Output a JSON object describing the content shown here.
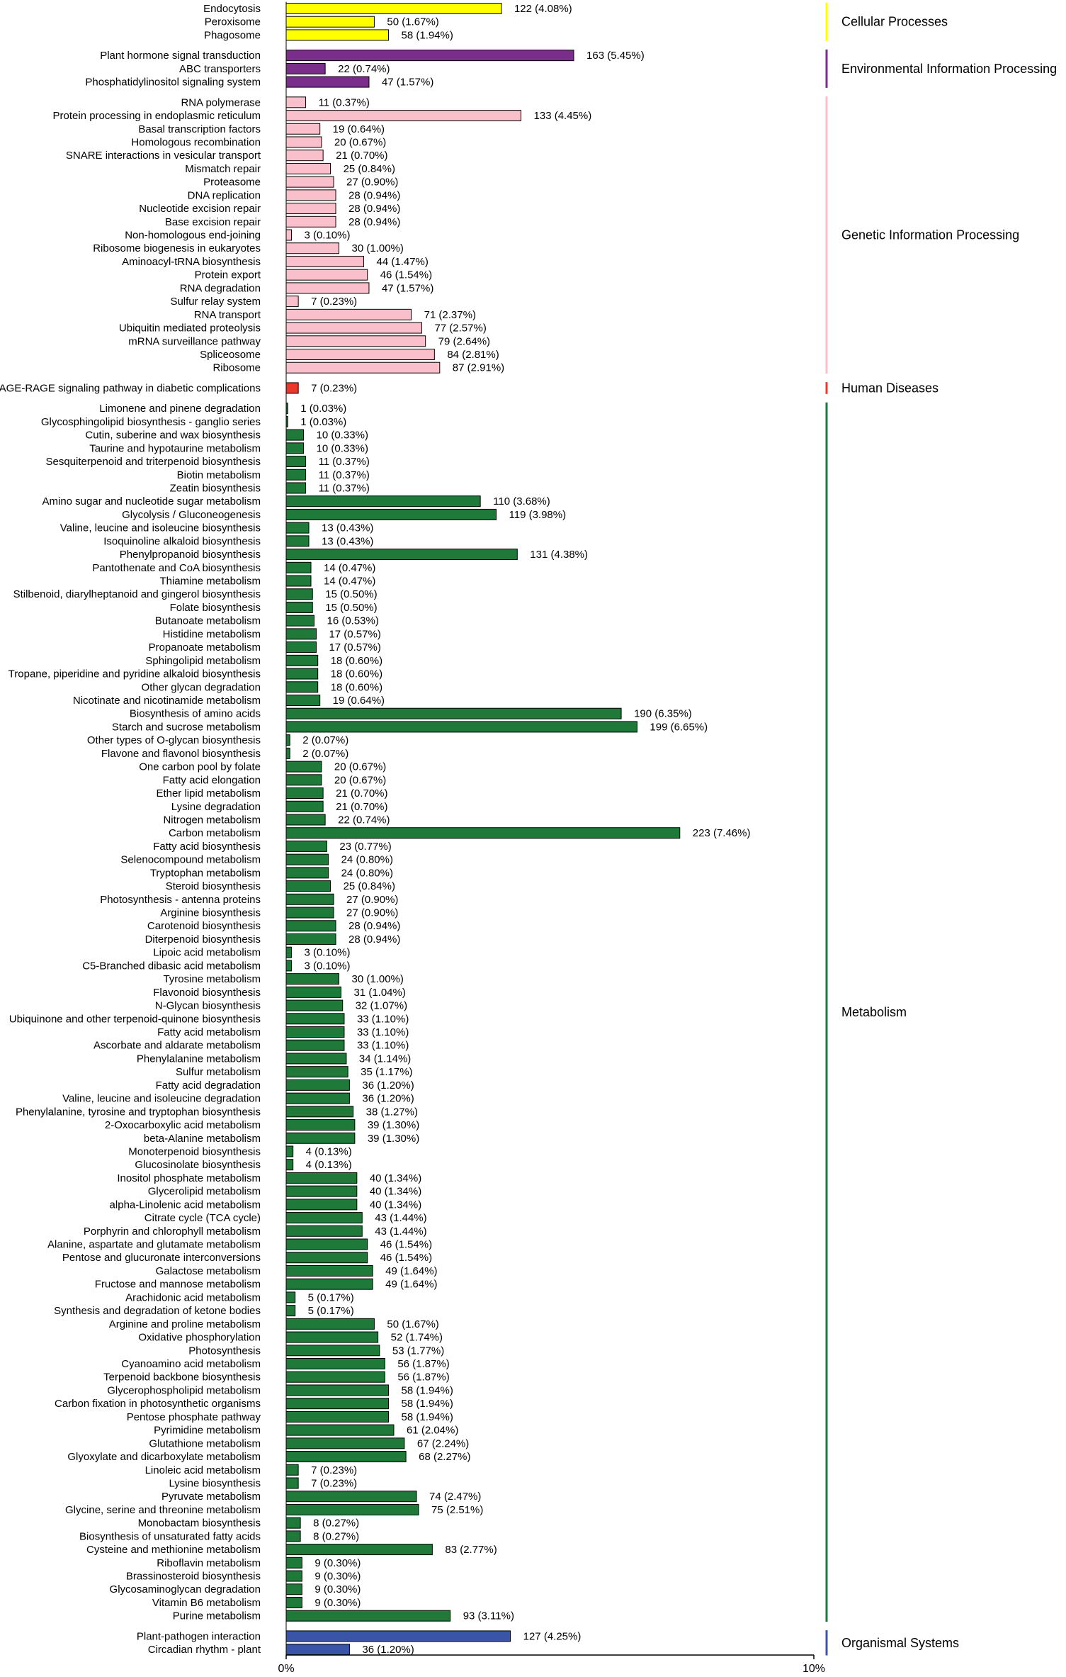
{
  "chart_data": {
    "type": "bar",
    "orientation": "horizontal",
    "title": "",
    "xlabel": "",
    "ylabel": "",
    "xlim": [
      0,
      10
    ],
    "x_ticks": [
      "0%",
      "10%"
    ],
    "grid": false,
    "value_label_format": "count (percent%)",
    "groups": [
      {
        "name": "Cellular Processes",
        "color": "#ffff00",
        "items": [
          {
            "label": "Endocytosis",
            "count": 122,
            "pct": "4.08%"
          },
          {
            "label": "Peroxisome",
            "count": 50,
            "pct": "1.67%"
          },
          {
            "label": "Phagosome",
            "count": 58,
            "pct": "1.94%"
          }
        ]
      },
      {
        "name": "Environmental Information Processing",
        "color": "#7b2d8b",
        "items": [
          {
            "label": "Plant hormone signal transduction",
            "count": 163,
            "pct": "5.45%"
          },
          {
            "label": "ABC transporters",
            "count": 22,
            "pct": "0.74%"
          },
          {
            "label": "Phosphatidylinositol signaling system",
            "count": 47,
            "pct": "1.57%"
          }
        ]
      },
      {
        "name": "Genetic Information Processing",
        "color": "#f9c0cb",
        "items": [
          {
            "label": "RNA polymerase",
            "count": 11,
            "pct": "0.37%"
          },
          {
            "label": "Protein processing in endoplasmic reticulum",
            "count": 133,
            "pct": "4.45%"
          },
          {
            "label": "Basal transcription factors",
            "count": 19,
            "pct": "0.64%"
          },
          {
            "label": "Homologous recombination",
            "count": 20,
            "pct": "0.67%"
          },
          {
            "label": "SNARE interactions in vesicular transport",
            "count": 21,
            "pct": "0.70%"
          },
          {
            "label": "Mismatch repair",
            "count": 25,
            "pct": "0.84%"
          },
          {
            "label": "Proteasome",
            "count": 27,
            "pct": "0.90%"
          },
          {
            "label": "DNA replication",
            "count": 28,
            "pct": "0.94%"
          },
          {
            "label": "Nucleotide excision repair",
            "count": 28,
            "pct": "0.94%"
          },
          {
            "label": "Base excision repair",
            "count": 28,
            "pct": "0.94%"
          },
          {
            "label": "Non-homologous end-joining",
            "count": 3,
            "pct": "0.10%"
          },
          {
            "label": "Ribosome biogenesis in eukaryotes",
            "count": 30,
            "pct": "1.00%"
          },
          {
            "label": "Aminoacyl-tRNA biosynthesis",
            "count": 44,
            "pct": "1.47%"
          },
          {
            "label": "Protein export",
            "count": 46,
            "pct": "1.54%"
          },
          {
            "label": "RNA degradation",
            "count": 47,
            "pct": "1.57%"
          },
          {
            "label": "Sulfur relay system",
            "count": 7,
            "pct": "0.23%"
          },
          {
            "label": "RNA transport",
            "count": 71,
            "pct": "2.37%"
          },
          {
            "label": "Ubiquitin mediated proteolysis",
            "count": 77,
            "pct": "2.57%"
          },
          {
            "label": "mRNA surveillance pathway",
            "count": 79,
            "pct": "2.64%"
          },
          {
            "label": "Spliceosome",
            "count": 84,
            "pct": "2.81%"
          },
          {
            "label": "Ribosome",
            "count": 87,
            "pct": "2.91%"
          }
        ]
      },
      {
        "name": "Human Diseases",
        "color": "#e8392b",
        "items": [
          {
            "label": "AGE-RAGE signaling pathway in diabetic complications",
            "count": 7,
            "pct": "0.23%"
          }
        ]
      },
      {
        "name": "Metabolism",
        "color": "#1f7a3a",
        "items": [
          {
            "label": "Limonene and pinene degradation",
            "count": 1,
            "pct": "0.03%"
          },
          {
            "label": "Glycosphingolipid biosynthesis - ganglio series",
            "count": 1,
            "pct": "0.03%"
          },
          {
            "label": "Cutin, suberine and wax biosynthesis",
            "count": 10,
            "pct": "0.33%"
          },
          {
            "label": "Taurine and hypotaurine metabolism",
            "count": 10,
            "pct": "0.33%"
          },
          {
            "label": "Sesquiterpenoid and triterpenoid biosynthesis",
            "count": 11,
            "pct": "0.37%"
          },
          {
            "label": "Biotin metabolism",
            "count": 11,
            "pct": "0.37%"
          },
          {
            "label": "Zeatin biosynthesis",
            "count": 11,
            "pct": "0.37%"
          },
          {
            "label": "Amino sugar and nucleotide sugar metabolism",
            "count": 110,
            "pct": "3.68%"
          },
          {
            "label": "Glycolysis / Gluconeogenesis",
            "count": 119,
            "pct": "3.98%"
          },
          {
            "label": "Valine, leucine and isoleucine biosynthesis",
            "count": 13,
            "pct": "0.43%"
          },
          {
            "label": "Isoquinoline alkaloid biosynthesis",
            "count": 13,
            "pct": "0.43%"
          },
          {
            "label": "Phenylpropanoid biosynthesis",
            "count": 131,
            "pct": "4.38%"
          },
          {
            "label": "Pantothenate and CoA biosynthesis",
            "count": 14,
            "pct": "0.47%"
          },
          {
            "label": "Thiamine metabolism",
            "count": 14,
            "pct": "0.47%"
          },
          {
            "label": "Stilbenoid, diarylheptanoid and gingerol biosynthesis",
            "count": 15,
            "pct": "0.50%"
          },
          {
            "label": "Folate biosynthesis",
            "count": 15,
            "pct": "0.50%"
          },
          {
            "label": "Butanoate metabolism",
            "count": 16,
            "pct": "0.53%"
          },
          {
            "label": "Histidine metabolism",
            "count": 17,
            "pct": "0.57%"
          },
          {
            "label": "Propanoate metabolism",
            "count": 17,
            "pct": "0.57%"
          },
          {
            "label": "Sphingolipid metabolism",
            "count": 18,
            "pct": "0.60%"
          },
          {
            "label": "Tropane, piperidine and pyridine alkaloid biosynthesis",
            "count": 18,
            "pct": "0.60%"
          },
          {
            "label": "Other glycan degradation",
            "count": 18,
            "pct": "0.60%"
          },
          {
            "label": "Nicotinate and nicotinamide metabolism",
            "count": 19,
            "pct": "0.64%"
          },
          {
            "label": "Biosynthesis of amino acids",
            "count": 190,
            "pct": "6.35%"
          },
          {
            "label": "Starch and sucrose metabolism",
            "count": 199,
            "pct": "6.65%"
          },
          {
            "label": "Other types of O-glycan biosynthesis",
            "count": 2,
            "pct": "0.07%"
          },
          {
            "label": "Flavone and flavonol biosynthesis",
            "count": 2,
            "pct": "0.07%"
          },
          {
            "label": "One carbon pool by folate",
            "count": 20,
            "pct": "0.67%"
          },
          {
            "label": "Fatty acid elongation",
            "count": 20,
            "pct": "0.67%"
          },
          {
            "label": "Ether lipid metabolism",
            "count": 21,
            "pct": "0.70%"
          },
          {
            "label": "Lysine degradation",
            "count": 21,
            "pct": "0.70%"
          },
          {
            "label": "Nitrogen metabolism",
            "count": 22,
            "pct": "0.74%"
          },
          {
            "label": "Carbon metabolism",
            "count": 223,
            "pct": "7.46%"
          },
          {
            "label": "Fatty acid biosynthesis",
            "count": 23,
            "pct": "0.77%"
          },
          {
            "label": "Selenocompound metabolism",
            "count": 24,
            "pct": "0.80%"
          },
          {
            "label": "Tryptophan metabolism",
            "count": 24,
            "pct": "0.80%"
          },
          {
            "label": "Steroid biosynthesis",
            "count": 25,
            "pct": "0.84%"
          },
          {
            "label": "Photosynthesis - antenna proteins",
            "count": 27,
            "pct": "0.90%"
          },
          {
            "label": "Arginine biosynthesis",
            "count": 27,
            "pct": "0.90%"
          },
          {
            "label": "Carotenoid biosynthesis",
            "count": 28,
            "pct": "0.94%"
          },
          {
            "label": "Diterpenoid biosynthesis",
            "count": 28,
            "pct": "0.94%"
          },
          {
            "label": "Lipoic acid metabolism",
            "count": 3,
            "pct": "0.10%"
          },
          {
            "label": "C5-Branched dibasic acid metabolism",
            "count": 3,
            "pct": "0.10%"
          },
          {
            "label": "Tyrosine metabolism",
            "count": 30,
            "pct": "1.00%"
          },
          {
            "label": "Flavonoid biosynthesis",
            "count": 31,
            "pct": "1.04%"
          },
          {
            "label": "N-Glycan biosynthesis",
            "count": 32,
            "pct": "1.07%"
          },
          {
            "label": "Ubiquinone and other terpenoid-quinone biosynthesis",
            "count": 33,
            "pct": "1.10%"
          },
          {
            "label": "Fatty acid metabolism",
            "count": 33,
            "pct": "1.10%"
          },
          {
            "label": "Ascorbate and aldarate metabolism",
            "count": 33,
            "pct": "1.10%"
          },
          {
            "label": "Phenylalanine metabolism",
            "count": 34,
            "pct": "1.14%"
          },
          {
            "label": "Sulfur metabolism",
            "count": 35,
            "pct": "1.17%"
          },
          {
            "label": "Fatty acid degradation",
            "count": 36,
            "pct": "1.20%"
          },
          {
            "label": "Valine, leucine and isoleucine degradation",
            "count": 36,
            "pct": "1.20%"
          },
          {
            "label": "Phenylalanine, tyrosine and tryptophan biosynthesis",
            "count": 38,
            "pct": "1.27%"
          },
          {
            "label": "2-Oxocarboxylic acid metabolism",
            "count": 39,
            "pct": "1.30%"
          },
          {
            "label": "beta-Alanine metabolism",
            "count": 39,
            "pct": "1.30%"
          },
          {
            "label": "Monoterpenoid biosynthesis",
            "count": 4,
            "pct": "0.13%"
          },
          {
            "label": "Glucosinolate biosynthesis",
            "count": 4,
            "pct": "0.13%"
          },
          {
            "label": "Inositol phosphate metabolism",
            "count": 40,
            "pct": "1.34%"
          },
          {
            "label": "Glycerolipid metabolism",
            "count": 40,
            "pct": "1.34%"
          },
          {
            "label": "alpha-Linolenic acid metabolism",
            "count": 40,
            "pct": "1.34%"
          },
          {
            "label": "Citrate cycle (TCA cycle)",
            "count": 43,
            "pct": "1.44%"
          },
          {
            "label": "Porphyrin and chlorophyll metabolism",
            "count": 43,
            "pct": "1.44%"
          },
          {
            "label": "Alanine, aspartate and glutamate metabolism",
            "count": 46,
            "pct": "1.54%"
          },
          {
            "label": "Pentose and glucuronate interconversions",
            "count": 46,
            "pct": "1.54%"
          },
          {
            "label": "Galactose metabolism",
            "count": 49,
            "pct": "1.64%"
          },
          {
            "label": "Fructose and mannose metabolism",
            "count": 49,
            "pct": "1.64%"
          },
          {
            "label": "Arachidonic acid metabolism",
            "count": 5,
            "pct": "0.17%"
          },
          {
            "label": "Synthesis and degradation of ketone bodies",
            "count": 5,
            "pct": "0.17%"
          },
          {
            "label": "Arginine and proline metabolism",
            "count": 50,
            "pct": "1.67%"
          },
          {
            "label": "Oxidative phosphorylation",
            "count": 52,
            "pct": "1.74%"
          },
          {
            "label": "Photosynthesis",
            "count": 53,
            "pct": "1.77%"
          },
          {
            "label": "Cyanoamino acid metabolism",
            "count": 56,
            "pct": "1.87%"
          },
          {
            "label": "Terpenoid backbone biosynthesis",
            "count": 56,
            "pct": "1.87%"
          },
          {
            "label": "Glycerophospholipid metabolism",
            "count": 58,
            "pct": "1.94%"
          },
          {
            "label": "Carbon fixation in photosynthetic organisms",
            "count": 58,
            "pct": "1.94%"
          },
          {
            "label": "Pentose phosphate pathway",
            "count": 58,
            "pct": "1.94%"
          },
          {
            "label": "Pyrimidine metabolism",
            "count": 61,
            "pct": "2.04%"
          },
          {
            "label": "Glutathione metabolism",
            "count": 67,
            "pct": "2.24%"
          },
          {
            "label": "Glyoxylate and dicarboxylate metabolism",
            "count": 68,
            "pct": "2.27%"
          },
          {
            "label": "Linoleic acid metabolism",
            "count": 7,
            "pct": "0.23%"
          },
          {
            "label": "Lysine biosynthesis",
            "count": 7,
            "pct": "0.23%"
          },
          {
            "label": "Pyruvate metabolism",
            "count": 74,
            "pct": "2.47%"
          },
          {
            "label": "Glycine, serine and threonine metabolism",
            "count": 75,
            "pct": "2.51%"
          },
          {
            "label": "Monobactam biosynthesis",
            "count": 8,
            "pct": "0.27%"
          },
          {
            "label": "Biosynthesis of unsaturated fatty acids",
            "count": 8,
            "pct": "0.27%"
          },
          {
            "label": "Cysteine and methionine metabolism",
            "count": 83,
            "pct": "2.77%"
          },
          {
            "label": "Riboflavin metabolism",
            "count": 9,
            "pct": "0.30%"
          },
          {
            "label": "Brassinosteroid biosynthesis",
            "count": 9,
            "pct": "0.30%"
          },
          {
            "label": "Glycosaminoglycan degradation",
            "count": 9,
            "pct": "0.30%"
          },
          {
            "label": "Vitamin B6 metabolism",
            "count": 9,
            "pct": "0.30%"
          },
          {
            "label": "Purine metabolism",
            "count": 93,
            "pct": "3.11%"
          }
        ]
      },
      {
        "name": "Organismal Systems",
        "color": "#3a55a8",
        "items": [
          {
            "label": "Plant-pathogen interaction",
            "count": 127,
            "pct": "4.25%"
          },
          {
            "label": "Circadian rhythm - plant",
            "count": 36,
            "pct": "1.20%"
          }
        ]
      }
    ]
  }
}
